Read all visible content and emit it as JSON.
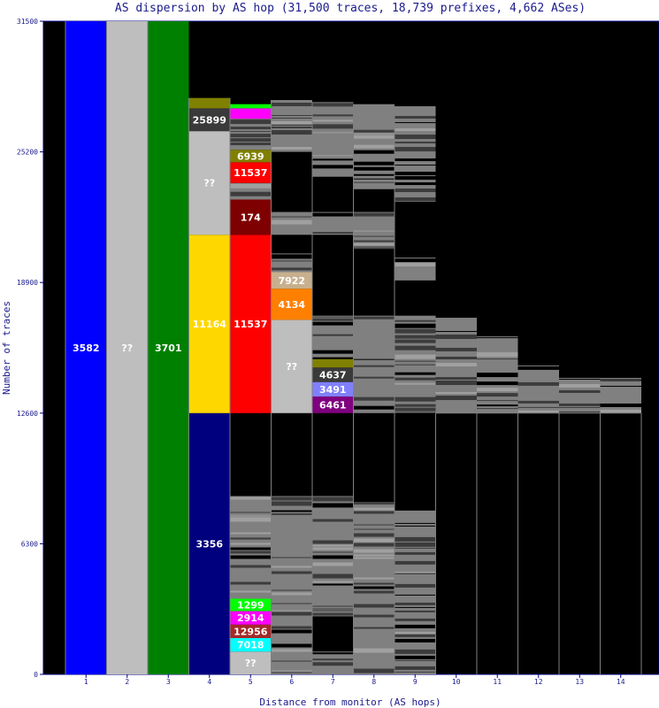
{
  "chart_data": {
    "type": "bar",
    "title": "AS dispersion by AS hop (31,500 traces, 18,739 prefixes, 4,662 ASes)",
    "xlabel": "Distance from monitor (AS hops)",
    "ylabel": "Number of traces",
    "ylim": [
      0,
      31500
    ],
    "yticks": [
      0,
      6300,
      12600,
      18900,
      25200,
      31500
    ],
    "categories": [
      "1",
      "2",
      "3",
      "4",
      "5",
      "6",
      "7",
      "8",
      "9",
      "10",
      "11",
      "12",
      "13",
      "14"
    ],
    "column_totals": [
      31500,
      31500,
      31500,
      27800,
      27800,
      27700,
      27600,
      27500,
      27400,
      12600,
      12600,
      12600,
      12600,
      12600
    ],
    "segments": [
      {
        "col": 1,
        "y0": 0,
        "y1": 31500,
        "label": "3582",
        "color": "#0000ff"
      },
      {
        "col": 2,
        "y0": 0,
        "y1": 31500,
        "label": "??",
        "color": "#bebebe"
      },
      {
        "col": 3,
        "y0": 0,
        "y1": 31500,
        "label": "3701",
        "color": "#008000"
      },
      {
        "col": 4,
        "y0": 0,
        "y1": 12600,
        "label": "3356",
        "color": "#00007e"
      },
      {
        "col": 4,
        "y0": 12600,
        "y1": 21200,
        "label": "11164",
        "color": "#ffd700"
      },
      {
        "col": 4,
        "y0": 21200,
        "y1": 26200,
        "label": "??",
        "color": "#bebebe"
      },
      {
        "col": 4,
        "y0": 26200,
        "y1": 27300,
        "label": "25899",
        "color": "#3a3a3a"
      },
      {
        "col": 4,
        "y0": 27300,
        "y1": 27800,
        "label": "",
        "color": "#808000"
      },
      {
        "col": 5,
        "y0": 0,
        "y1": 1100,
        "label": "??",
        "color": "#bebebe"
      },
      {
        "col": 5,
        "y0": 1100,
        "y1": 1750,
        "label": "7018",
        "color": "#00ffff"
      },
      {
        "col": 5,
        "y0": 1750,
        "y1": 2400,
        "label": "12956",
        "color": "#a52a2a"
      },
      {
        "col": 5,
        "y0": 2400,
        "y1": 3050,
        "label": "2914",
        "color": "#ff00ff"
      },
      {
        "col": 5,
        "y0": 3050,
        "y1": 3650,
        "label": "1299",
        "color": "#00ff00"
      },
      {
        "col": 5,
        "y0": 12600,
        "y1": 21200,
        "label": "11537",
        "color": "#ff0000"
      },
      {
        "col": 5,
        "y0": 21200,
        "y1": 22900,
        "label": "174",
        "color": "#7f0000"
      },
      {
        "col": 5,
        "y0": 23700,
        "y1": 24700,
        "label": "11537",
        "color": "#ff0000"
      },
      {
        "col": 5,
        "y0": 24700,
        "y1": 25300,
        "label": "6939",
        "color": "#808000"
      },
      {
        "col": 5,
        "y0": 26800,
        "y1": 27300,
        "label": "",
        "color": "#ff00ff"
      },
      {
        "col": 5,
        "y0": 27300,
        "y1": 27500,
        "label": "",
        "color": "#00ff00"
      },
      {
        "col": 6,
        "y0": 12600,
        "y1": 17100,
        "label": "??",
        "color": "#bebebe"
      },
      {
        "col": 6,
        "y0": 17100,
        "y1": 18600,
        "label": "4134",
        "color": "#ff8000"
      },
      {
        "col": 6,
        "y0": 18600,
        "y1": 19400,
        "label": "7922",
        "color": "#c8b08e"
      },
      {
        "col": 7,
        "y0": 12600,
        "y1": 13400,
        "label": "6461",
        "color": "#800080"
      },
      {
        "col": 7,
        "y0": 13400,
        "y1": 14100,
        "label": "3491",
        "color": "#8080ff"
      },
      {
        "col": 7,
        "y0": 14100,
        "y1": 14800,
        "label": "4637",
        "color": "#3a3a3a"
      },
      {
        "col": 7,
        "y0": 14800,
        "y1": 15200,
        "label": "",
        "color": "#808000"
      }
    ],
    "gray_blocks": [
      {
        "col": 5,
        "y0": 3650,
        "y1": 8600
      },
      {
        "col": 5,
        "y0": 22900,
        "y1": 23700
      },
      {
        "col": 5,
        "y0": 25300,
        "y1": 26800
      },
      {
        "col": 6,
        "y0": 0,
        "y1": 8600
      },
      {
        "col": 6,
        "y0": 19400,
        "y1": 20300
      },
      {
        "col": 6,
        "y0": 21200,
        "y1": 22300
      },
      {
        "col": 6,
        "y0": 25200,
        "y1": 27700
      },
      {
        "col": 7,
        "y0": 0,
        "y1": 1100
      },
      {
        "col": 7,
        "y0": 2800,
        "y1": 8600
      },
      {
        "col": 7,
        "y0": 15200,
        "y1": 17300
      },
      {
        "col": 7,
        "y0": 21200,
        "y1": 22300
      },
      {
        "col": 7,
        "y0": 24000,
        "y1": 27600
      },
      {
        "col": 8,
        "y0": 0,
        "y1": 8300
      },
      {
        "col": 8,
        "y0": 12600,
        "y1": 17300
      },
      {
        "col": 8,
        "y0": 20500,
        "y1": 22300
      },
      {
        "col": 8,
        "y0": 23400,
        "y1": 27500
      },
      {
        "col": 9,
        "y0": 0,
        "y1": 7900
      },
      {
        "col": 9,
        "y0": 12600,
        "y1": 17300
      },
      {
        "col": 9,
        "y0": 19000,
        "y1": 20100
      },
      {
        "col": 9,
        "y0": 22800,
        "y1": 27400
      },
      {
        "col": 10,
        "y0": 12600,
        "y1": 17200
      },
      {
        "col": 11,
        "y0": 12600,
        "y1": 16300
      },
      {
        "col": 12,
        "y0": 12600,
        "y1": 14900
      },
      {
        "col": 13,
        "y0": 12600,
        "y1": 14300
      },
      {
        "col": 14,
        "y0": 12600,
        "y1": 14300
      }
    ],
    "grid": false,
    "legend": "none"
  }
}
